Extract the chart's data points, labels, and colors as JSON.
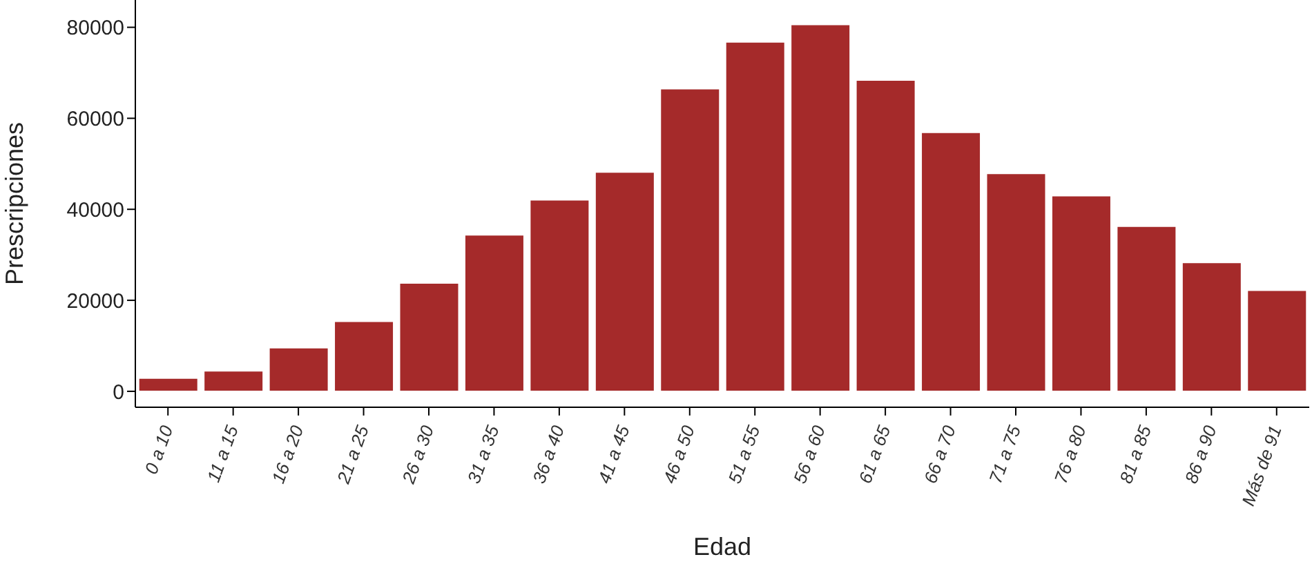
{
  "chart_data": {
    "type": "bar",
    "xlabel": "Edad",
    "ylabel": "Prescripciones",
    "categories": [
      "0 a 10",
      "11 a 15",
      "16 a 20",
      "21 a 25",
      "26 a 30",
      "31 a 35",
      "36 a 40",
      "41 a 45",
      "46 a 50",
      "51 a 55",
      "56 a 60",
      "61 a 65",
      "66 a 70",
      "71 a 75",
      "76 a 80",
      "81 a 85",
      "86 a 90",
      "Más de 91"
    ],
    "values": [
      2900,
      4500,
      9600,
      15400,
      23800,
      34400,
      42100,
      48200,
      66500,
      76800,
      80600,
      68400,
      56900,
      47900,
      43000,
      36300,
      28300,
      22200
    ],
    "color": "#a52a2a",
    "ylim": [
      -3500,
      86000
    ],
    "yticks": [
      0,
      20000,
      40000,
      60000,
      80000
    ],
    "grid": false,
    "legend": false
  }
}
